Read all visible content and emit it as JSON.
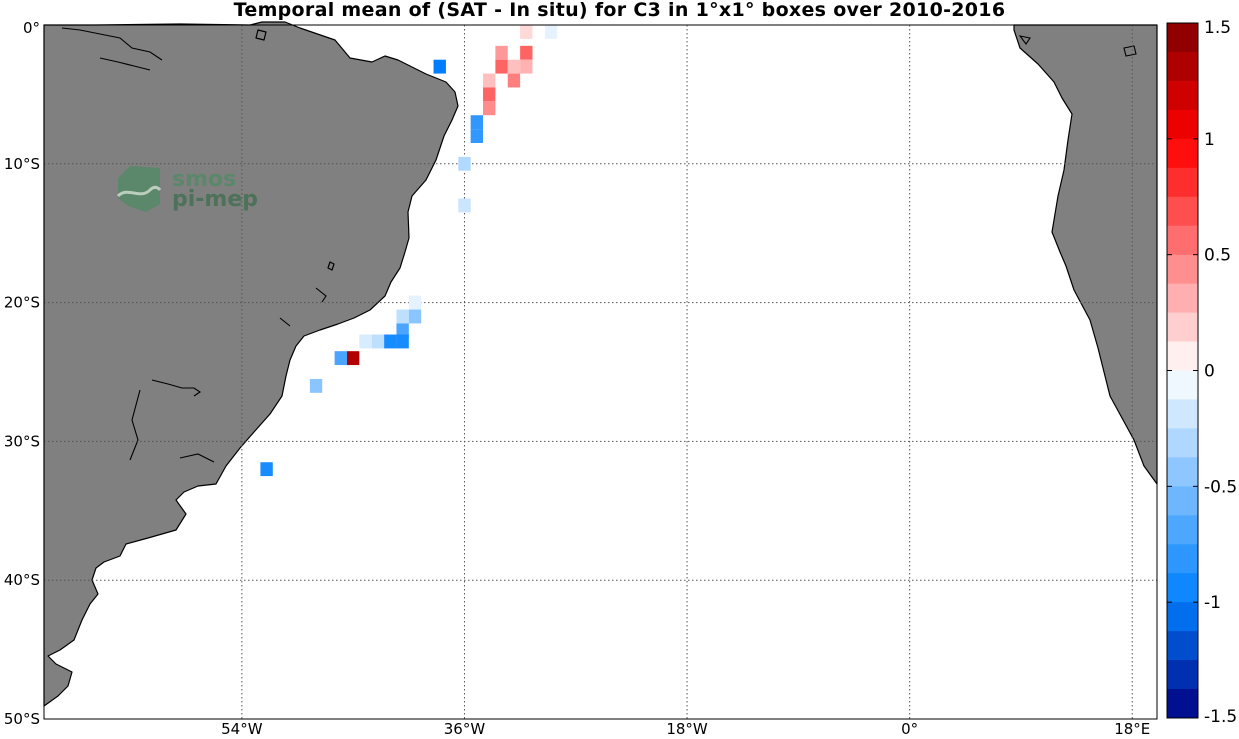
{
  "title": "Temporal mean of (SAT - In situ) for C3 in 1°x1° boxes over 2010-2016",
  "logo": {
    "line1": "smos",
    "line2": "pi-mep"
  },
  "map": {
    "lon_range": [
      -70,
      20
    ],
    "lat_range": [
      -50,
      0
    ],
    "land_color": "#808080",
    "grid": true,
    "lat_ticks": [
      {
        "value": 0,
        "label": "0°"
      },
      {
        "value": -10,
        "label": "10°S"
      },
      {
        "value": -20,
        "label": "20°S"
      },
      {
        "value": -30,
        "label": "30°S"
      },
      {
        "value": -40,
        "label": "40°S"
      },
      {
        "value": -50,
        "label": "50°S"
      }
    ],
    "lon_ticks": [
      {
        "value": -54,
        "label": "54°W"
      },
      {
        "value": -36,
        "label": "36°W"
      },
      {
        "value": -18,
        "label": "18°W"
      },
      {
        "value": 0,
        "label": "0°"
      },
      {
        "value": 18,
        "label": "18°E"
      }
    ]
  },
  "chart_data": {
    "type": "heatmap",
    "title": "Temporal mean of (SAT - In situ) for C3 in 1°x1° boxes over 2010-2016",
    "xlabel": "",
    "ylabel": "",
    "xlim": [
      -70,
      20
    ],
    "ylim": [
      -50,
      0
    ],
    "cell_size_deg": 1,
    "cells": [
      {
        "lon": -31,
        "lat": -0.5,
        "value": 0.15
      },
      {
        "lon": -29,
        "lat": -0.5,
        "value": -0.1
      },
      {
        "lon": -33,
        "lat": -2,
        "value": 0.4
      },
      {
        "lon": -31,
        "lat": -2,
        "value": 0.6
      },
      {
        "lon": -33,
        "lat": -3,
        "value": 0.6
      },
      {
        "lon": -32,
        "lat": -3,
        "value": 0.25
      },
      {
        "lon": -31,
        "lat": -3,
        "value": 0.3
      },
      {
        "lon": -34,
        "lat": -4,
        "value": 0.25
      },
      {
        "lon": -32,
        "lat": -4,
        "value": 0.5
      },
      {
        "lon": -34,
        "lat": -5,
        "value": 0.6
      },
      {
        "lon": -34,
        "lat": -6,
        "value": 0.45
      },
      {
        "lon": -35,
        "lat": -7,
        "value": -0.8
      },
      {
        "lon": -35,
        "lat": -8,
        "value": -0.8
      },
      {
        "lon": -38,
        "lat": -3,
        "value": -1.0
      },
      {
        "lon": -36,
        "lat": -10,
        "value": -0.3
      },
      {
        "lon": -36,
        "lat": -13,
        "value": -0.2
      },
      {
        "lon": -40,
        "lat": -20,
        "value": -0.1
      },
      {
        "lon": -41,
        "lat": -21,
        "value": -0.25
      },
      {
        "lon": -40,
        "lat": -21,
        "value": -0.45
      },
      {
        "lon": -41,
        "lat": -22,
        "value": -0.7
      },
      {
        "lon": -42,
        "lat": -22.8,
        "value": -0.9
      },
      {
        "lon": -41,
        "lat": -22.8,
        "value": -0.9
      },
      {
        "lon": -43,
        "lat": -22.8,
        "value": -0.25
      },
      {
        "lon": -44,
        "lat": -22.8,
        "value": -0.15
      },
      {
        "lon": -45,
        "lat": -24,
        "value": 1.3
      },
      {
        "lon": -46,
        "lat": -24,
        "value": -0.7
      },
      {
        "lon": -48,
        "lat": -26,
        "value": -0.45
      },
      {
        "lon": -52,
        "lat": -32,
        "value": -0.9
      }
    ]
  },
  "colorbar": {
    "min": -1.5,
    "max": 1.5,
    "step": 0.125,
    "ticks": [
      {
        "value": 1.5,
        "label": "1.5"
      },
      {
        "value": 1,
        "label": "1"
      },
      {
        "value": 0.5,
        "label": "0.5"
      },
      {
        "value": 0,
        "label": "0"
      },
      {
        "value": -0.5,
        "label": "-0.5"
      },
      {
        "value": -1,
        "label": "-1"
      },
      {
        "value": -1.5,
        "label": "-1.5"
      }
    ]
  }
}
